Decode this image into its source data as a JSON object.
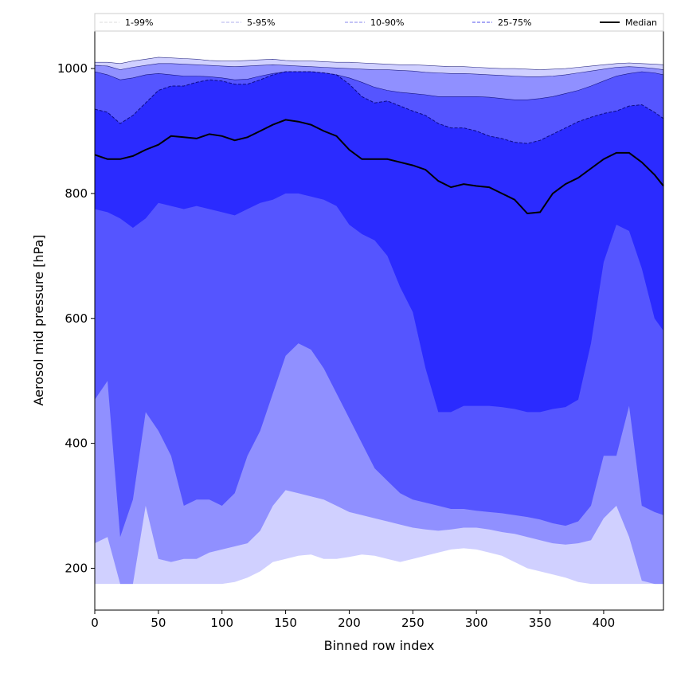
{
  "chart_data": {
    "type": "area",
    "title": "",
    "xlabel": "Binned row index",
    "ylabel": "Aerosol mid pressure [hPa]",
    "xlim": [
      0,
      447
    ],
    "ylim": [
      133,
      1060
    ],
    "xticks": [
      0,
      50,
      100,
      150,
      200,
      250,
      300,
      350,
      400
    ],
    "yticks": [
      200,
      400,
      600,
      800,
      1000
    ],
    "legend_position": "top, spanning full width above plot",
    "x": [
      0,
      10,
      20,
      30,
      40,
      50,
      60,
      70,
      80,
      90,
      100,
      110,
      120,
      130,
      140,
      150,
      160,
      170,
      180,
      190,
      200,
      210,
      220,
      230,
      240,
      250,
      260,
      270,
      280,
      290,
      300,
      310,
      320,
      330,
      340,
      350,
      360,
      370,
      380,
      390,
      400,
      410,
      420,
      430,
      440,
      447
    ],
    "series": [
      {
        "name": "1-99%",
        "color": "#d0d0ff",
        "low": [
          175,
          175,
          175,
          175,
          175,
          175,
          175,
          175,
          175,
          175,
          175,
          178,
          185,
          195,
          210,
          215,
          220,
          222,
          215,
          215,
          218,
          222,
          220,
          215,
          210,
          215,
          220,
          225,
          230,
          232,
          230,
          225,
          220,
          210,
          200,
          195,
          190,
          185,
          178,
          175,
          175,
          175,
          175,
          175,
          175,
          175
        ],
        "high": [
          1010,
          1010,
          1008,
          1012,
          1015,
          1018,
          1017,
          1016,
          1015,
          1013,
          1012,
          1012,
          1013,
          1014,
          1015,
          1013,
          1012,
          1012,
          1011,
          1010,
          1010,
          1009,
          1008,
          1007,
          1006,
          1006,
          1005,
          1004,
          1003,
          1003,
          1002,
          1001,
          1000,
          1000,
          999,
          998,
          999,
          1000,
          1002,
          1004,
          1006,
          1008,
          1009,
          1008,
          1007,
          1006
        ]
      },
      {
        "name": "5-95%",
        "color": "#9090ff",
        "low": [
          240,
          250,
          175,
          175,
          300,
          215,
          210,
          215,
          215,
          225,
          230,
          235,
          240,
          260,
          300,
          325,
          320,
          315,
          310,
          300,
          290,
          285,
          280,
          275,
          270,
          265,
          262,
          260,
          262,
          265,
          265,
          262,
          258,
          255,
          250,
          245,
          240,
          238,
          240,
          245,
          280,
          300,
          250,
          180,
          175,
          175
        ],
        "high": [
          1005,
          1004,
          998,
          1002,
          1005,
          1008,
          1008,
          1007,
          1006,
          1005,
          1004,
          1003,
          1004,
          1005,
          1006,
          1005,
          1004,
          1003,
          1002,
          1001,
          1000,
          999,
          998,
          998,
          997,
          996,
          994,
          993,
          992,
          992,
          991,
          990,
          989,
          988,
          987,
          987,
          988,
          990,
          993,
          996,
          999,
          1002,
          1003,
          1002,
          1000,
          998
        ]
      },
      {
        "name": "10-90%",
        "color": "#5555ff",
        "low": [
          470,
          500,
          250,
          310,
          450,
          420,
          380,
          300,
          310,
          310,
          300,
          320,
          380,
          420,
          480,
          540,
          560,
          550,
          520,
          480,
          440,
          400,
          360,
          340,
          320,
          310,
          305,
          300,
          295,
          295,
          292,
          290,
          288,
          285,
          282,
          278,
          272,
          268,
          275,
          300,
          380,
          380,
          460,
          300,
          290,
          285
        ],
        "high": [
          995,
          990,
          982,
          985,
          990,
          992,
          990,
          988,
          988,
          987,
          985,
          982,
          983,
          988,
          992,
          995,
          995,
          995,
          993,
          990,
          985,
          978,
          970,
          965,
          962,
          960,
          958,
          955,
          955,
          955,
          955,
          954,
          952,
          950,
          950,
          952,
          955,
          960,
          965,
          972,
          980,
          988,
          992,
          995,
          993,
          990
        ]
      },
      {
        "name": "25-75%",
        "color": "#2b2bff",
        "low": [
          775,
          770,
          760,
          745,
          760,
          785,
          780,
          775,
          780,
          775,
          770,
          765,
          775,
          785,
          790,
          800,
          800,
          795,
          790,
          780,
          750,
          735,
          725,
          700,
          650,
          610,
          520,
          450,
          450,
          460,
          460,
          460,
          458,
          455,
          450,
          450,
          455,
          458,
          470,
          560,
          690,
          750,
          740,
          680,
          600,
          580
        ],
        "high": [
          935,
          930,
          912,
          925,
          945,
          965,
          972,
          972,
          978,
          982,
          980,
          975,
          975,
          982,
          990,
          995,
          995,
          995,
          993,
          990,
          975,
          955,
          945,
          948,
          940,
          932,
          925,
          912,
          905,
          905,
          900,
          892,
          888,
          882,
          880,
          885,
          895,
          905,
          915,
          922,
          928,
          932,
          940,
          942,
          930,
          920
        ]
      }
    ],
    "median": {
      "name": "Median",
      "color": "#000000",
      "values": [
        862,
        855,
        855,
        860,
        870,
        878,
        892,
        890,
        888,
        895,
        892,
        885,
        890,
        900,
        910,
        918,
        915,
        910,
        900,
        892,
        870,
        855,
        855,
        855,
        850,
        845,
        838,
        820,
        810,
        815,
        812,
        810,
        800,
        790,
        768,
        770,
        800,
        815,
        825,
        840,
        855,
        865,
        865,
        850,
        830,
        812
      ]
    }
  }
}
